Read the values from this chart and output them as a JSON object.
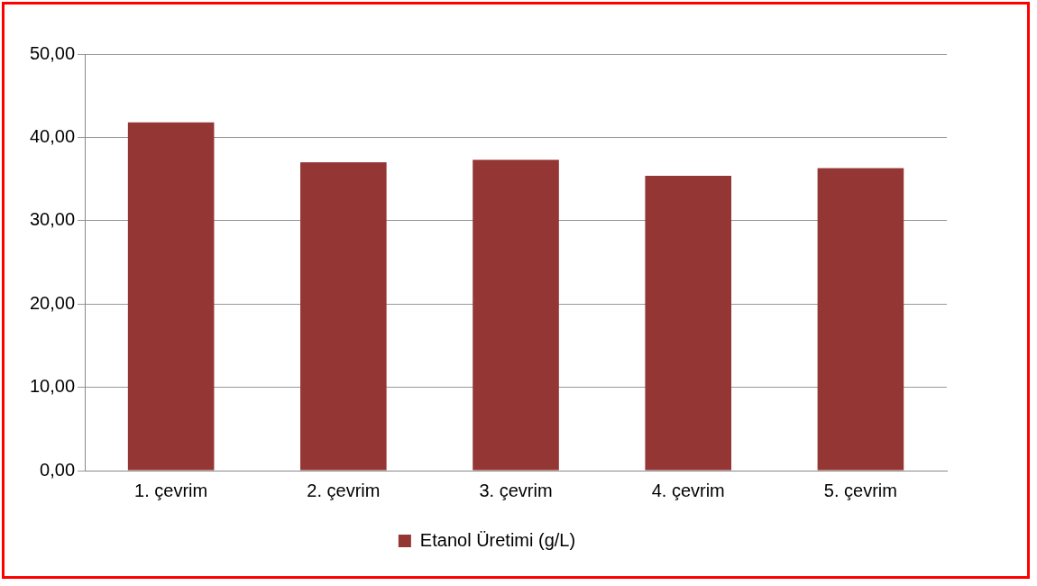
{
  "chart_data": {
    "type": "bar",
    "categories": [
      "1. çevrim",
      "2. çevrim",
      "3. çevrim",
      "4. çevrim",
      "5. çevrim"
    ],
    "series": [
      {
        "name": "Etanol Üretimi (g/L)",
        "color": "#943634",
        "values": [
          41.8,
          37.0,
          37.3,
          35.4,
          36.3
        ]
      }
    ],
    "ylim": [
      0,
      50
    ],
    "yticks": [
      {
        "value": 0,
        "label": "0,00"
      },
      {
        "value": 10,
        "label": "10,00"
      },
      {
        "value": 20,
        "label": "20,00"
      },
      {
        "value": 30,
        "label": "30,00"
      },
      {
        "value": 40,
        "label": "40,00"
      },
      {
        "value": 50,
        "label": "50,00"
      }
    ],
    "grid": "y",
    "legend": "bottom"
  }
}
